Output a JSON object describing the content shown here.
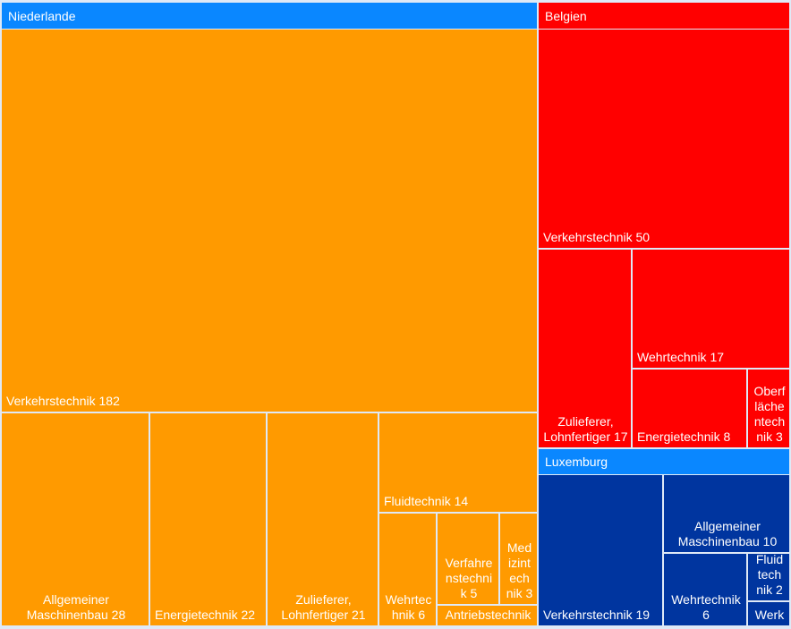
{
  "chart_data": {
    "type": "treemap",
    "colors": {
      "Niederlande": "#ff9a00",
      "Belgien": "#ff0000",
      "Luxemburg": "#00359f",
      "header_blue": "#0a87ff",
      "header_red": "#ff0000",
      "border": "#ffffff",
      "frame": "#dfe9f6"
    },
    "groups": [
      {
        "name": "Niederlande",
        "header_color": "#0a87ff",
        "tile_color": "#ff9a00",
        "items": [
          {
            "label": "Verkehrstechnik 182",
            "category": "Verkehrstechnik",
            "value": 182
          },
          {
            "label": "Allgemeiner\nMaschinenbau 28",
            "category": "Allgemeiner Maschinenbau",
            "value": 28
          },
          {
            "label": "Energietechnik 22",
            "category": "Energietechnik",
            "value": 22
          },
          {
            "label": "Zulieferer,\nLohnfertiger 21",
            "category": "Zulieferer, Lohnfertiger",
            "value": 21
          },
          {
            "label": "Fluidtechnik 14",
            "category": "Fluidtechnik",
            "value": 14
          },
          {
            "label": "Wehrtec\nhnik 6",
            "category": "Wehrtechnik",
            "value": 6
          },
          {
            "label": "Verfahre\nnstechni\nk 5",
            "category": "Verfahrenstechnik",
            "value": 5
          },
          {
            "label": "Med\nizint\nech\nnik 3",
            "category": "Medizintechnik",
            "value": 3
          },
          {
            "label": "Antriebstechnik",
            "category": "Antriebstechnik",
            "value": null
          }
        ]
      },
      {
        "name": "Belgien",
        "header_color": "#ff0000",
        "tile_color": "#ff0000",
        "items": [
          {
            "label": "Verkehrstechnik 50",
            "category": "Verkehrstechnik",
            "value": 50
          },
          {
            "label": "Zulieferer,\nLohnfertiger 17",
            "category": "Zulieferer, Lohnfertiger",
            "value": 17
          },
          {
            "label": "Wehrtechnik 17",
            "category": "Wehrtechnik",
            "value": 17
          },
          {
            "label": "Energietechnik 8",
            "category": "Energietechnik",
            "value": 8
          },
          {
            "label": "Oberf\nläche\nntech\nnik 3",
            "category": "Oberflächentechnik",
            "value": 3
          }
        ]
      },
      {
        "name": "Luxemburg",
        "header_color": "#0a87ff",
        "tile_color": "#00359f",
        "items": [
          {
            "label": "Verkehrstechnik 19",
            "category": "Verkehrstechnik",
            "value": 19
          },
          {
            "label": "Allgemeiner\nMaschinenbau 10",
            "category": "Allgemeiner Maschinenbau",
            "value": 10
          },
          {
            "label": "Wehrtechnik\n6",
            "category": "Wehrtechnik",
            "value": 6
          },
          {
            "label": "Fluid\ntech\nnik 2",
            "category": "Fluidtechnik",
            "value": 2
          },
          {
            "label": "Werk",
            "category": "Werk",
            "value": null
          }
        ]
      }
    ]
  }
}
